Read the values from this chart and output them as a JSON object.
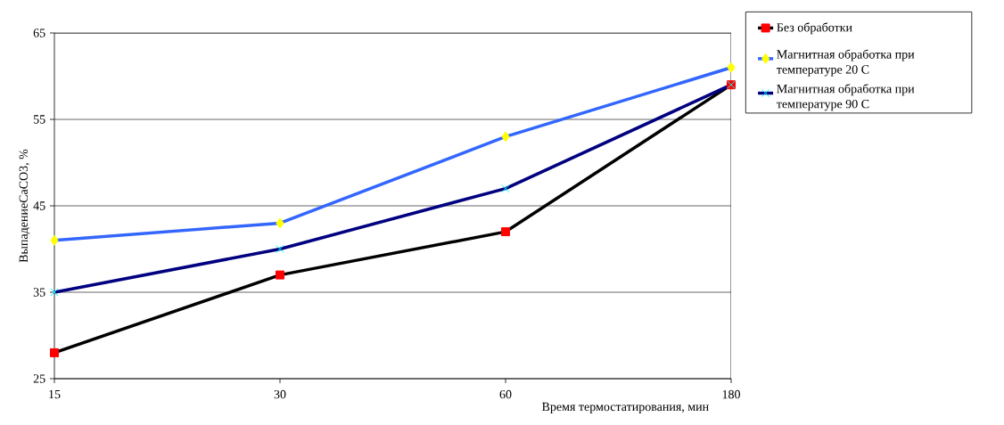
{
  "chart_data": {
    "type": "line",
    "xlabel": "Время термостатирования,  мин",
    "ylabel": "ВыпадениеCaCO3, %",
    "categories": [
      "15",
      "30",
      "60",
      "180"
    ],
    "series": [
      {
        "name": "Без обработки",
        "color": "#000000",
        "marker": "square",
        "values": [
          28,
          37,
          42,
          59
        ]
      },
      {
        "name": "Магнитная обработка при температуре 20  C",
        "color": "#3366ff",
        "marker": "diamond",
        "values": [
          41,
          43,
          53,
          61
        ]
      },
      {
        "name": "Магнитная обработка при температуре 90  C",
        "color": "#000080",
        "marker": "cross",
        "values": [
          35,
          40,
          47,
          59
        ]
      }
    ],
    "ylim": [
      25,
      65
    ],
    "yticks": [
      25,
      35,
      45,
      55,
      65
    ],
    "grid": "y",
    "legend": "right",
    "line_style": "solid"
  }
}
